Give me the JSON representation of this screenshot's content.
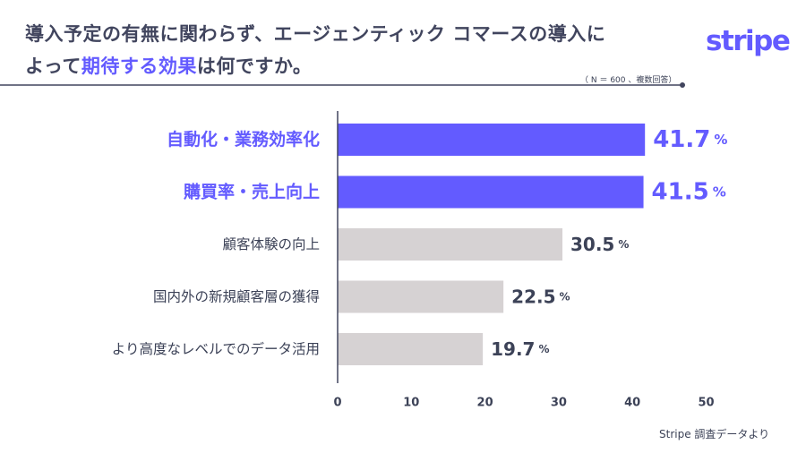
{
  "title": {
    "line1": "導入予定の有無に関わらず、エージェンティック コマースの導入に",
    "line2_before": "よって",
    "line2_highlight": "期待する効果",
    "line2_after": "は何ですか。"
  },
  "brand": {
    "logo": "stripe",
    "accent": "#635bff"
  },
  "sample_note": "（ N ＝ 600 、複数回答）",
  "source": "Stripe 調査データより",
  "colors": {
    "highlight_bar": "#635bff",
    "normal_bar": "#d6d2d3",
    "text": "#3c4257"
  },
  "chart_data": {
    "type": "bar",
    "orientation": "horizontal",
    "categories": [
      "自動化・業務効率化",
      "購買率・売上向上",
      "顧客体験の向上",
      "国内外の新規顧客層の獲得",
      "より高度なレベルでのデータ活用"
    ],
    "values": [
      41.7,
      41.5,
      30.5,
      22.5,
      19.7
    ],
    "value_labels": [
      "41.7",
      "41.5",
      "30.5",
      "22.5",
      "19.7"
    ],
    "unit": "%",
    "highlighted": [
      true,
      true,
      false,
      false,
      false
    ],
    "xlim": [
      0,
      50
    ],
    "xticks": [
      0,
      10,
      20,
      30,
      40,
      50
    ],
    "xtick_labels": [
      "0",
      "10",
      "20",
      "30",
      "40",
      "50"
    ],
    "grid": false
  }
}
